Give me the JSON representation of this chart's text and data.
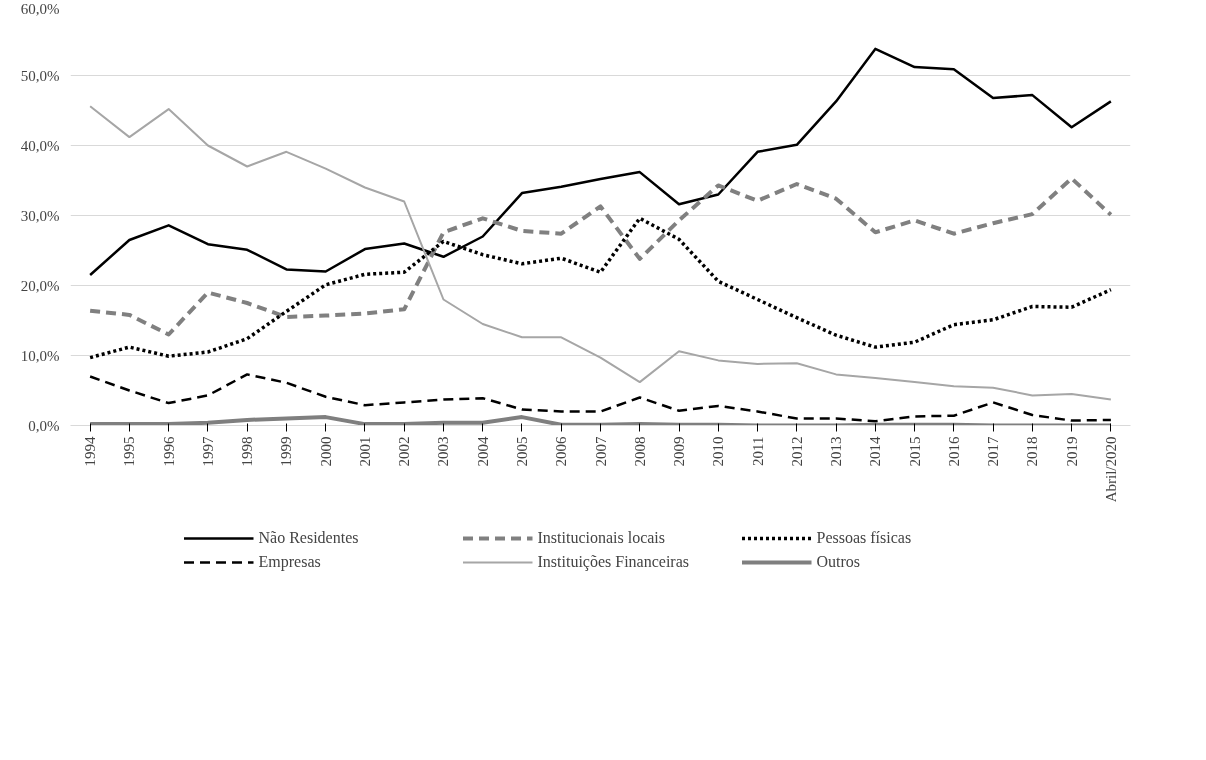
{
  "chart_data": {
    "type": "line",
    "categories": [
      "1994",
      "1995",
      "1996",
      "1997",
      "1998",
      "1999",
      "2000",
      "2001",
      "2002",
      "2003",
      "2004",
      "2005",
      "2006",
      "2007",
      "2008",
      "2009",
      "2010",
      "2011",
      "2012",
      "2013",
      "2014",
      "2015",
      "2016",
      "2017",
      "2018",
      "2019",
      "Abril/2020"
    ],
    "series": [
      {
        "name": "Não Residentes",
        "color": "#000000",
        "line_style": "solid",
        "values": [
          21.5,
          26.5,
          28.6,
          25.9,
          25.1,
          22.3,
          22.0,
          25.2,
          26.0,
          24.1,
          27.0,
          33.2,
          34.1,
          35.2,
          36.2,
          31.6,
          33.0,
          39.1,
          40.1,
          46.3,
          53.8,
          51.2,
          50.9,
          46.8,
          47.2,
          42.6,
          46.3
        ]
      },
      {
        "name": "Institucionais locais",
        "color": "#808080",
        "line_style": "dashed",
        "values": [
          16.4,
          15.8,
          13.0,
          19.0,
          17.5,
          15.5,
          15.7,
          16.0,
          16.6,
          27.6,
          29.6,
          27.8,
          27.4,
          31.3,
          23.8,
          29.3,
          34.3,
          32.1,
          34.5,
          32.4,
          27.6,
          29.3,
          27.4,
          28.9,
          30.2,
          35.3,
          30.1
        ]
      },
      {
        "name": "Pessoas físicas",
        "color": "#000000",
        "line_style": "dotted",
        "values": [
          9.7,
          11.2,
          9.9,
          10.5,
          12.4,
          16.3,
          20.1,
          21.6,
          21.9,
          26.3,
          24.4,
          23.1,
          23.9,
          21.9,
          29.6,
          26.6,
          20.6,
          18.0,
          15.4,
          12.9,
          11.2,
          11.9,
          14.4,
          15.1,
          17.0,
          16.9,
          19.4
        ]
      },
      {
        "name": "Empresas",
        "color": "#000000",
        "line_style": "dashed",
        "values": [
          7.0,
          5.0,
          3.2,
          4.3,
          7.3,
          6.1,
          4.1,
          2.9,
          3.3,
          3.7,
          3.9,
          2.3,
          2.0,
          2.0,
          4.0,
          2.1,
          2.8,
          2.0,
          1.0,
          1.0,
          0.6,
          1.3,
          1.4,
          3.3,
          1.5,
          0.7,
          0.8
        ]
      },
      {
        "name": "Instituições Financeiras",
        "color": "#a6a6a6",
        "line_style": "solid",
        "values": [
          45.6,
          41.2,
          45.2,
          40.0,
          37.0,
          39.1,
          36.7,
          34.0,
          32.0,
          18.0,
          14.5,
          12.6,
          12.6,
          9.7,
          6.2,
          10.6,
          9.3,
          8.8,
          8.9,
          7.3,
          6.8,
          6.2,
          5.6,
          5.4,
          4.3,
          4.5,
          3.7
        ]
      },
      {
        "name": "Outros",
        "color": "#7f7f7f",
        "line_style": "solid",
        "values": [
          0.2,
          0.2,
          0.2,
          0.4,
          0.8,
          1.0,
          1.2,
          0.2,
          0.2,
          0.4,
          0.4,
          1.2,
          0.1,
          0.1,
          0.2,
          0.1,
          0.1,
          0,
          0,
          0,
          0.1,
          0.1,
          0.1,
          0,
          0,
          0,
          0
        ]
      }
    ],
    "ylim": [
      0,
      60
    ],
    "yticks": [
      {
        "value": 0,
        "label": "0,0%"
      },
      {
        "value": 10,
        "label": "10,0%"
      },
      {
        "value": 20,
        "label": "20,0%"
      },
      {
        "value": 30,
        "label": "30,0%"
      },
      {
        "value": 40,
        "label": "40,0%"
      },
      {
        "value": 50,
        "label": "50,0%"
      },
      {
        "value": 60,
        "label": "60,0%"
      }
    ],
    "grid": "y",
    "legend": "bottom",
    "marker": "none"
  }
}
